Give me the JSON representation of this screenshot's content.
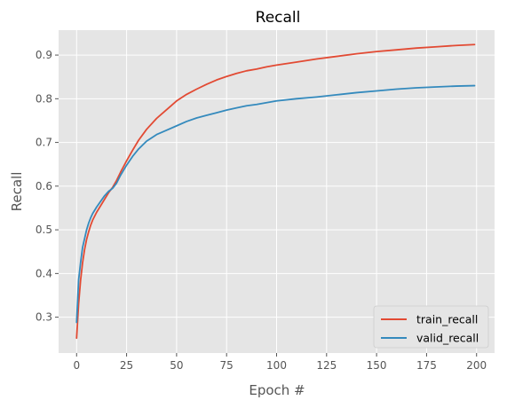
{
  "chart_data": {
    "type": "line",
    "title": "Recall",
    "xlabel": "Epoch #",
    "ylabel": "Recall",
    "xlim": [
      -9,
      209
    ],
    "ylim": [
      0.218,
      0.957
    ],
    "x_ticks": [
      0,
      25,
      50,
      75,
      100,
      125,
      150,
      175,
      200
    ],
    "y_ticks": [
      0.3,
      0.4,
      0.5,
      0.6,
      0.7,
      0.8,
      0.9
    ],
    "grid": true,
    "style": "ggplot",
    "legend_position": "lower right",
    "series": [
      {
        "name": "train_recall",
        "color": "#E24A33",
        "x": [
          0,
          1,
          2,
          3,
          4,
          5,
          6,
          7,
          8,
          10,
          12,
          14,
          16,
          18,
          20,
          22,
          25,
          28,
          31,
          35,
          40,
          45,
          50,
          55,
          60,
          65,
          70,
          75,
          80,
          85,
          90,
          95,
          100,
          110,
          120,
          130,
          140,
          150,
          160,
          170,
          180,
          190,
          199
        ],
        "y": [
          0.252,
          0.33,
          0.385,
          0.425,
          0.455,
          0.478,
          0.495,
          0.51,
          0.522,
          0.54,
          0.555,
          0.57,
          0.585,
          0.597,
          0.613,
          0.632,
          0.658,
          0.682,
          0.705,
          0.73,
          0.755,
          0.775,
          0.795,
          0.81,
          0.822,
          0.833,
          0.843,
          0.851,
          0.858,
          0.864,
          0.868,
          0.873,
          0.877,
          0.884,
          0.891,
          0.897,
          0.903,
          0.908,
          0.912,
          0.916,
          0.919,
          0.922,
          0.924
        ]
      },
      {
        "name": "valid_recall",
        "color": "#348ABD",
        "x": [
          0,
          1,
          2,
          3,
          4,
          5,
          6,
          7,
          8,
          10,
          12,
          14,
          16,
          18,
          20,
          22,
          25,
          28,
          31,
          35,
          40,
          45,
          50,
          55,
          60,
          65,
          70,
          75,
          80,
          85,
          90,
          95,
          100,
          110,
          120,
          130,
          140,
          150,
          160,
          170,
          180,
          190,
          199
        ],
        "y": [
          0.288,
          0.385,
          0.425,
          0.46,
          0.48,
          0.5,
          0.515,
          0.527,
          0.537,
          0.552,
          0.565,
          0.578,
          0.588,
          0.595,
          0.607,
          0.625,
          0.648,
          0.668,
          0.685,
          0.703,
          0.718,
          0.728,
          0.738,
          0.748,
          0.756,
          0.762,
          0.768,
          0.774,
          0.779,
          0.784,
          0.787,
          0.791,
          0.795,
          0.8,
          0.804,
          0.809,
          0.814,
          0.818,
          0.822,
          0.825,
          0.827,
          0.829,
          0.83
        ]
      }
    ]
  }
}
